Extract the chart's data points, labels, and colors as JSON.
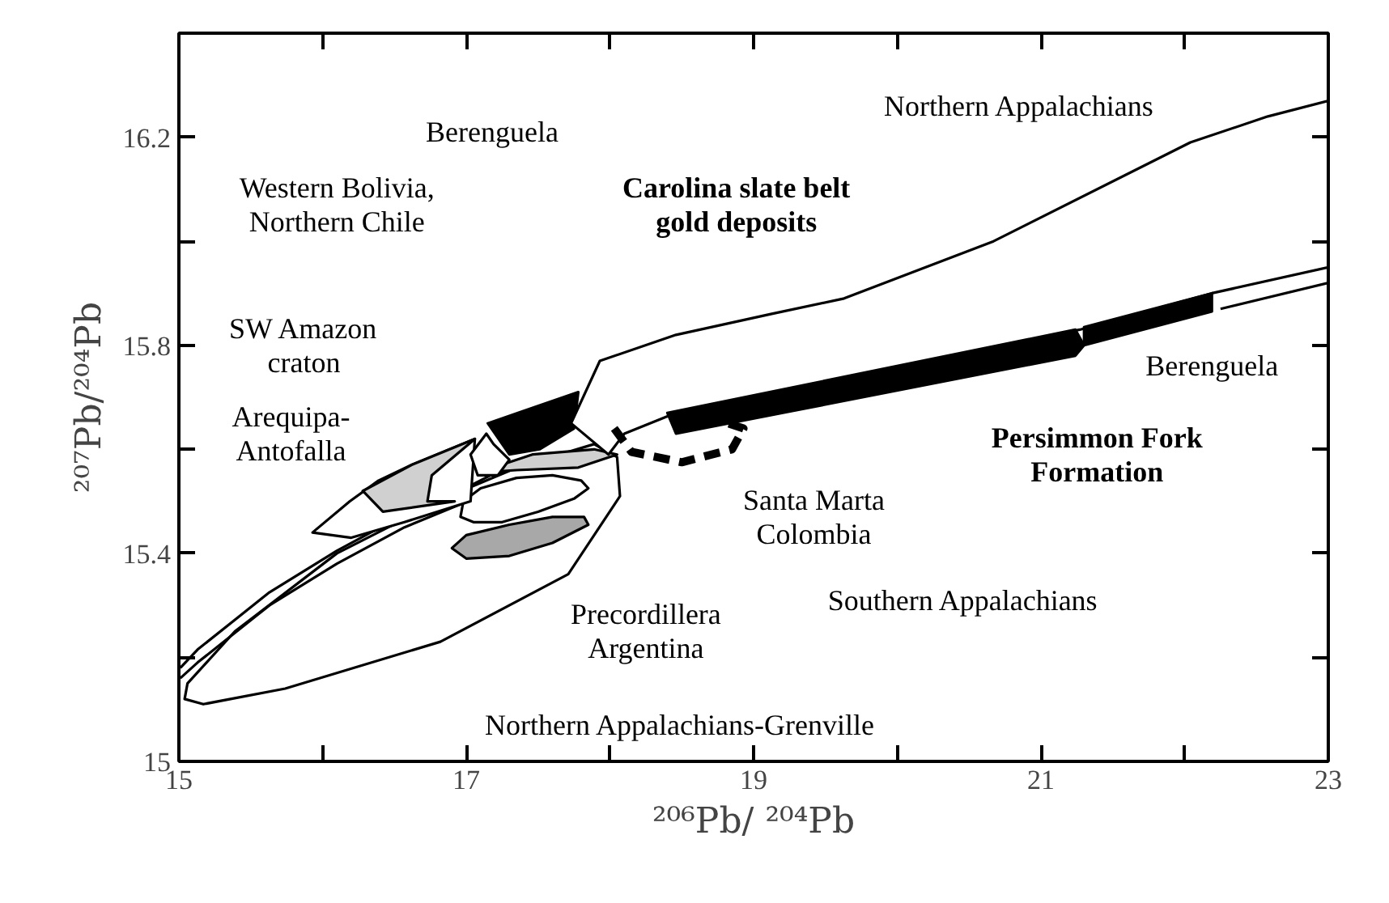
{
  "chart_data": {
    "type": "line",
    "xlabel": "²⁰⁶Pb/ ²⁰⁴Pb",
    "ylabel": "²⁰⁷Pb/²⁰⁴Pb",
    "xlim": [
      15,
      23
    ],
    "ylim": [
      15,
      16.4
    ],
    "xticks": [
      15,
      {
        "value": 16,
        "label": null
      },
      17,
      {
        "value": 18,
        "label": null
      },
      19,
      {
        "value": 20,
        "label": null
      },
      21,
      {
        "value": 22,
        "label": null
      },
      23
    ],
    "yticks": [
      15,
      {
        "value": 15.2,
        "label": null
      },
      15.4,
      {
        "value": 15.6,
        "label": null
      },
      15.8,
      {
        "value": 16.0,
        "label": null
      },
      16.2
    ],
    "grid": false,
    "series": [
      {
        "type": "area",
        "color": "#ffffff",
        "x": [
          15.04,
          15.17,
          15.74,
          16.82,
          17.71,
          18.07,
          18.05,
          17.89,
          17.17,
          16.1,
          15.39,
          15.06,
          15.04
        ],
        "values": [
          15.12,
          15.11,
          15.14,
          15.23,
          15.36,
          15.51,
          15.585,
          15.61,
          15.55,
          15.4,
          15.25,
          15.15,
          15.12
        ]
      },
      {
        "color": "#000000",
        "x": [
          15.01,
          15.13,
          15.63,
          16.1,
          16.57,
          17.01
        ],
        "values": [
          15.16,
          15.19,
          15.3,
          15.38,
          15.45,
          15.5
        ]
      },
      {
        "color": "#000000",
        "x": [
          15.01,
          15.13,
          15.63,
          16.1,
          16.57,
          17.01,
          17.4
        ],
        "values": [
          15.18,
          15.215,
          15.325,
          15.405,
          15.475,
          15.525,
          15.57
        ]
      },
      {
        "type": "area",
        "color": "#ffffff",
        "x": [
          16.96,
          17.05,
          17.25,
          17.5,
          17.75,
          17.85,
          17.8,
          17.6,
          17.35,
          17.1,
          16.98,
          16.96
        ],
        "values": [
          15.47,
          15.46,
          15.46,
          15.48,
          15.505,
          15.525,
          15.54,
          15.55,
          15.545,
          15.525,
          15.5,
          15.47
        ]
      },
      {
        "type": "area",
        "color": "#a8a8a8",
        "x": [
          16.9,
          17.0,
          17.3,
          17.6,
          17.85,
          17.82,
          17.6,
          17.3,
          17.0,
          16.9
        ],
        "values": [
          15.41,
          15.39,
          15.395,
          15.42,
          15.455,
          15.47,
          15.47,
          15.455,
          15.435,
          15.41
        ]
      },
      {
        "type": "area",
        "color": "#d0d0d0",
        "x": [
          17.08,
          17.46,
          17.89,
          18.05,
          17.78,
          17.35,
          17.08
        ],
        "values": [
          15.555,
          15.59,
          15.6,
          15.59,
          15.565,
          15.56,
          15.555
        ]
      },
      {
        "type": "area",
        "color": "#ffffff",
        "x": [
          15.93,
          16.19,
          16.39,
          16.62,
          17.06,
          17.03,
          16.57,
          16.2,
          15.93
        ],
        "values": [
          15.44,
          15.5,
          15.54,
          15.57,
          15.62,
          15.5,
          15.46,
          15.43,
          15.44
        ]
      },
      {
        "type": "area",
        "color": "#d0d0d0",
        "x": [
          16.28,
          16.62,
          17.06,
          16.76,
          16.73,
          16.92,
          16.42,
          16.28
        ],
        "values": [
          15.52,
          15.57,
          15.62,
          15.55,
          15.5,
          15.5,
          15.48,
          15.52
        ]
      },
      {
        "type": "area",
        "color": "#ffffff",
        "x": [
          17.03,
          17.14,
          17.19,
          17.3,
          17.22,
          17.08,
          17.03
        ],
        "values": [
          15.59,
          15.63,
          15.61,
          15.58,
          15.55,
          15.55,
          15.59
        ]
      },
      {
        "type": "area",
        "color": "#000000",
        "x": [
          17.15,
          17.78,
          17.75,
          17.51,
          17.3,
          17.15
        ],
        "values": [
          15.65,
          15.71,
          15.64,
          15.6,
          15.59,
          15.65
        ]
      },
      {
        "type": "area",
        "color": "#ffffff",
        "x": [
          17.93,
          18.46,
          19.12,
          19.63,
          20.67,
          22.04,
          22.58,
          23.0,
          23.0,
          22.19,
          21.27,
          18.46,
          18.1,
          17.99,
          17.73,
          17.93
        ],
        "values": [
          15.77,
          15.82,
          15.86,
          15.89,
          16.0,
          16.19,
          16.24,
          16.27,
          15.95,
          15.9,
          15.83,
          15.67,
          15.63,
          15.59,
          15.65,
          15.77
        ]
      },
      {
        "color": "#000000",
        "x": [
          22.25,
          23.0
        ],
        "values": [
          15.87,
          15.92
        ]
      },
      {
        "type": "area",
        "color": "#000000",
        "x": [
          21.3,
          22.19,
          22.19,
          21.3,
          21.3
        ],
        "values": [
          15.835,
          15.9,
          15.865,
          15.8,
          15.835
        ]
      },
      {
        "type": "area",
        "color": "#000000",
        "x": [
          18.4,
          21.24,
          21.3,
          21.24,
          18.46,
          18.4
        ],
        "values": [
          15.67,
          15.83,
          15.8,
          15.78,
          15.63,
          15.67
        ]
      },
      {
        "color": "#000000",
        "line_style": "dashed",
        "x": [
          18.03,
          18.15,
          18.5,
          18.85,
          18.93,
          18.6
        ],
        "values": [
          15.64,
          15.595,
          15.575,
          15.6,
          15.64,
          15.67
        ]
      }
    ],
    "annotations": [
      "Northern Appalachians",
      "Berenguela",
      "Western Bolivia,\nNorthern Chile",
      "Carolina slate belt\ngold deposits",
      "SW Amazon\ncraton",
      "Arequipa-\nAntofalla",
      "Berenguela",
      "Persimmon Fork\nFormation",
      "Santa Marta\nColombia",
      "Southern Appalachians",
      "Precordillera\nArgentina",
      "Northern Appalachians-Grenville"
    ]
  }
}
